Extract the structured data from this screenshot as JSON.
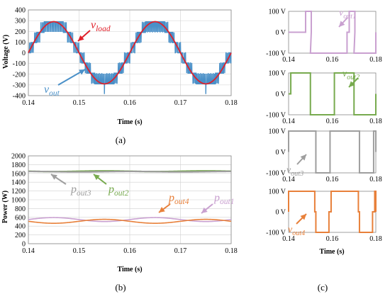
{
  "colors": {
    "vload": "#e0202a",
    "vout": "#4a90c8",
    "pout1": "#c9a0d0",
    "pout2": "#77aa4e",
    "pout3": "#9e9e9e",
    "pout4": "#e8803a",
    "grid": "#d0d0d0"
  },
  "chart_data": [
    {
      "id": "a",
      "type": "line",
      "panel_label": "(a)",
      "xlabel": "Time (s)",
      "ylabel": "Voltage (V)",
      "xlim": [
        0.14,
        0.18
      ],
      "ylim": [
        -400,
        400
      ],
      "x_ticks": [
        "0.14",
        "0.15",
        "0.16",
        "0.17",
        "0.18"
      ],
      "y_ticks": [
        "400",
        "300",
        "200",
        "100",
        "0",
        "-100",
        "-200",
        "-300",
        "-400"
      ],
      "grid": true,
      "series": [
        {
          "name": "v_load",
          "label_main": "v",
          "label_sub": "load",
          "color": "#e0202a",
          "waveform": "sine",
          "amplitude": 290,
          "frequency_hz": 50,
          "phase_deg": 0
        },
        {
          "name": "v_out",
          "label_main": "v",
          "label_sub": "out",
          "color": "#4a90c8",
          "waveform": "staircase",
          "step_levels": [
            -290,
            -190,
            -95,
            0,
            95,
            190,
            290
          ],
          "frequency_hz": 50
        }
      ]
    },
    {
      "id": "b",
      "type": "line",
      "panel_label": "(b)",
      "xlabel": "Time (s)",
      "ylabel": "Power (W)",
      "xlim": [
        0.14,
        0.18
      ],
      "ylim": [
        0,
        2000
      ],
      "x_ticks": [
        "0.14",
        "0.15",
        "0.16",
        "0.17",
        "0.18"
      ],
      "y_ticks": [
        "2000",
        "1800",
        "1600",
        "1400",
        "1200",
        "1000",
        "800",
        "600",
        "400",
        "200",
        "0"
      ],
      "grid": true,
      "series": [
        {
          "name": "p_out1",
          "label_main": "p",
          "label_sub": "out1",
          "color": "#c9a0d0",
          "mean": 550,
          "ripple": 45,
          "frequency_hz": 50,
          "phase_deg": 0
        },
        {
          "name": "p_out2",
          "label_main": "p",
          "label_sub": "out2",
          "color": "#77aa4e",
          "mean": 1650,
          "ripple": 8,
          "frequency_hz": 50,
          "phase_deg": 180
        },
        {
          "name": "p_out3",
          "label_main": "p",
          "label_sub": "out3",
          "color": "#9e9e9e",
          "mean": 1640,
          "ripple": 6,
          "frequency_hz": 50,
          "phase_deg": 90
        },
        {
          "name": "p_out4",
          "label_main": "p",
          "label_sub": "out4",
          "color": "#e8803a",
          "mean": 510,
          "ripple": 45,
          "frequency_hz": 50,
          "phase_deg": 180
        }
      ]
    },
    {
      "id": "c",
      "type": "line",
      "panel_label": "(c)",
      "xlabel": "Time (s)",
      "ylim": [
        -100,
        100
      ],
      "xlim": [
        0.14,
        0.18
      ],
      "subplots": [
        {
          "name": "v_out1",
          "label_main": "v",
          "label_sub": "out1",
          "color": "#c9a0d0",
          "y_ticks": [
            "100 V",
            "0 V",
            "-100 V"
          ],
          "x_ticks": [
            "0.14",
            "0.16",
            "0.18"
          ],
          "pulses_positive": [
            [
              0.1478,
              0.1504
            ],
            [
              0.1678,
              0.1704
            ]
          ],
          "pulses_negative": [
            [
              0.15,
              0.1668
            ],
            [
              0.17,
              0.18
            ]
          ]
        },
        {
          "name": "v_out2",
          "label_main": "v",
          "label_sub": "out2",
          "color": "#77aa4e",
          "y_ticks": [
            "100 V",
            "0 V",
            "-100 V"
          ],
          "x_ticks": [
            "0.14",
            "0.16",
            "0.18"
          ],
          "pulses_positive": [
            [
              0.141,
              0.15
            ],
            [
              0.161,
              0.17
            ]
          ],
          "pulses_negative": [
            [
              0.15,
              0.161
            ],
            [
              0.17,
              0.18
            ]
          ]
        },
        {
          "name": "v_out3",
          "label_main": "v",
          "label_sub": "out3",
          "color": "#9e9e9e",
          "y_ticks": [
            "100 V",
            "0 V",
            "-100 V"
          ],
          "x_ticks": [
            "0.14",
            "0.16",
            "0.18"
          ],
          "pulses_positive": [
            [
              0.14,
              0.1525
            ],
            [
              0.159,
              0.1725
            ],
            [
              0.179,
              0.18
            ]
          ],
          "pulses_negative": [
            [
              0.1525,
              0.159
            ],
            [
              0.1725,
              0.179
            ]
          ]
        },
        {
          "name": "v_out4",
          "label_main": "v",
          "label_sub": "out4",
          "color": "#e8803a",
          "y_ticks": [
            "100 V",
            "0 V",
            "-100 V"
          ],
          "x_ticks": [
            "0.14",
            "0.16",
            "0.18"
          ],
          "pulses_positive": [
            [
              0.14,
              0.152
            ],
            [
              0.1595,
              0.172
            ],
            [
              0.1795,
              0.18
            ]
          ],
          "pulses_negative": [
            [
              0.1525,
              0.1585
            ],
            [
              0.1725,
              0.1785
            ]
          ]
        }
      ]
    }
  ]
}
